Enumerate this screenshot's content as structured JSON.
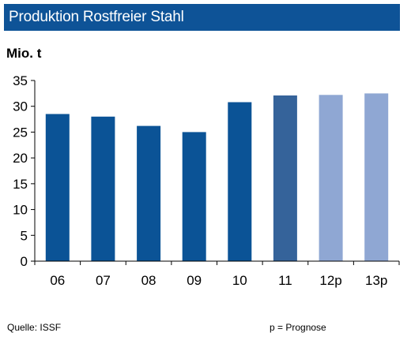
{
  "header": {
    "title": "Produktion Rostfreier Stahl"
  },
  "unit_label": "Mio. t",
  "footer": {
    "source": "Quelle:  ISSF",
    "note": "p = Prognose"
  },
  "colors": {
    "title_bg": "#0e5397",
    "actual": "#0b5396",
    "estimate_2011": "#35639a",
    "forecast": "#8fa7d3"
  },
  "chart_data": {
    "type": "bar",
    "title": "Produktion Rostfreier Stahl",
    "ylabel": "Mio. t",
    "xlabel": "",
    "categories": [
      "06",
      "07",
      "08",
      "09",
      "10",
      "11",
      "12p",
      "13p"
    ],
    "values": [
      28.5,
      28.0,
      26.2,
      25.0,
      30.8,
      32.1,
      32.2,
      32.5
    ],
    "bar_colors": [
      "#0b5396",
      "#0b5396",
      "#0b5396",
      "#0b5396",
      "#0b5396",
      "#35639a",
      "#8fa7d3",
      "#8fa7d3"
    ],
    "ylim": [
      0,
      35
    ],
    "yticks": [
      0,
      5,
      10,
      15,
      20,
      25,
      30,
      35
    ],
    "grid": false,
    "legend": "none"
  }
}
